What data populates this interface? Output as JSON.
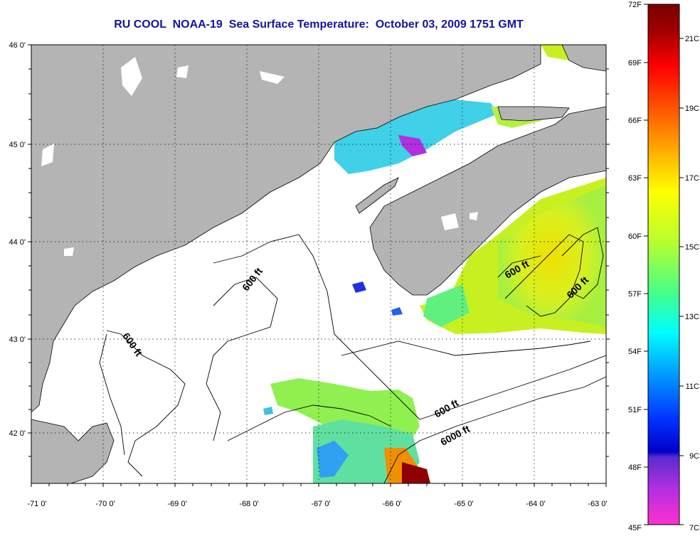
{
  "title": "RU COOL  NOAA-19  Sea Surface Temperature:  October 03, 2009 1751 GMT",
  "map": {
    "longitude_ticks": [
      "-71 0'",
      "-70 0'",
      "-69 0'",
      "-68 0'",
      "-67 0'",
      "-66 0'",
      "-65 0'",
      "-64 0'",
      "-63 0'"
    ],
    "latitude_ticks": [
      "46 0'",
      "45 0'",
      "44 0'",
      "43 0'",
      "42 0'"
    ],
    "contour_labels": [
      "600 ft",
      "600 ft",
      "600 ft",
      "600 ft",
      "600 ft",
      "6000 ft"
    ],
    "colors": {
      "land": "#b4b4b4",
      "ocean_no_data": "#ffffff",
      "coast_line": "#000000"
    }
  },
  "colorbar": {
    "fahrenheit_labels": [
      "72F",
      "69F",
      "66F",
      "63F",
      "60F",
      "57F",
      "54F",
      "51F",
      "48F",
      "45F"
    ],
    "celsius_labels": [
      "21C",
      "19C",
      "17C",
      "15C",
      "13C",
      "11C",
      "9C",
      "7C"
    ]
  }
}
